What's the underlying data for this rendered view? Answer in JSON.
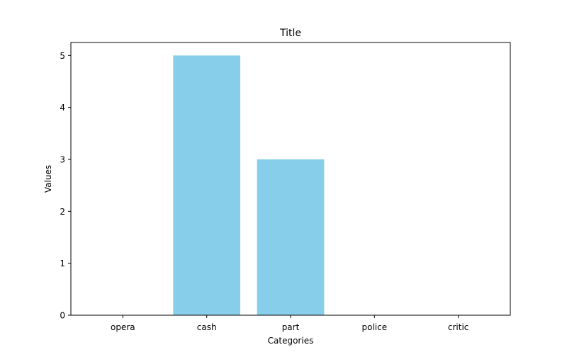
{
  "chart_data": {
    "type": "bar",
    "title": "Title",
    "xlabel": "Categories",
    "ylabel": "Values",
    "categories": [
      "opera",
      "cash",
      "part",
      "police",
      "critic"
    ],
    "values": [
      0,
      5,
      3,
      0,
      0
    ],
    "ylim": [
      0,
      5.25
    ],
    "yticks": [
      0,
      1,
      2,
      3,
      4,
      5
    ],
    "bar_color": "#87ceeb",
    "grid": false,
    "legend": "none"
  }
}
